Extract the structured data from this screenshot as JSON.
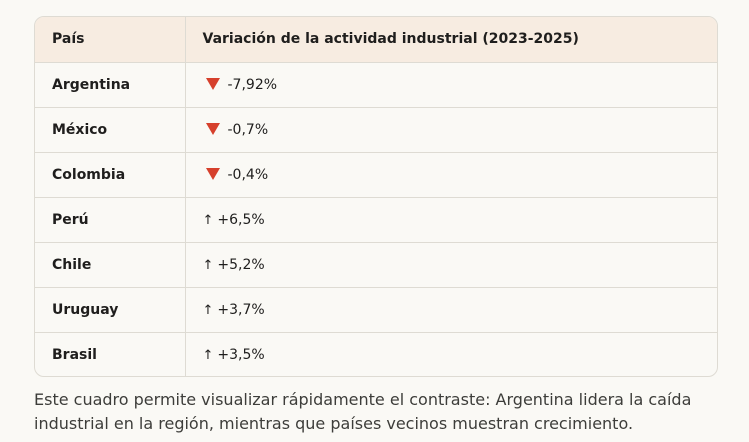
{
  "table": {
    "headers": [
      "País",
      "Variación de la actividad industrial (2023-2025)"
    ],
    "rows": [
      {
        "country": "Argentina",
        "value": "-7,92%",
        "direction": "down",
        "icon": "red-down-triangle-icon"
      },
      {
        "country": "México",
        "value": "-0,7%",
        "direction": "down",
        "icon": "red-down-triangle-icon"
      },
      {
        "country": "Colombia",
        "value": "-0,4%",
        "direction": "down",
        "icon": "red-down-triangle-icon"
      },
      {
        "country": "Perú",
        "value": "+6,5%",
        "direction": "up",
        "icon": "up-arrow-icon"
      },
      {
        "country": "Chile",
        "value": "+5,2%",
        "direction": "up",
        "icon": "up-arrow-icon"
      },
      {
        "country": "Uruguay",
        "value": "+3,7%",
        "direction": "up",
        "icon": "up-arrow-icon"
      },
      {
        "country": "Brasil",
        "value": "+3,5%",
        "direction": "up",
        "icon": "up-arrow-icon"
      }
    ]
  },
  "footer": {
    "text": "Este cuadro permite visualizar rápidamente el contraste: Argentina lidera la caída industrial en la región, mientras que países vecinos muestran crecimiento."
  },
  "colors": {
    "header_bg": "#f7ece1",
    "down_icon": "#d6402c",
    "border": "#dedbd3"
  }
}
